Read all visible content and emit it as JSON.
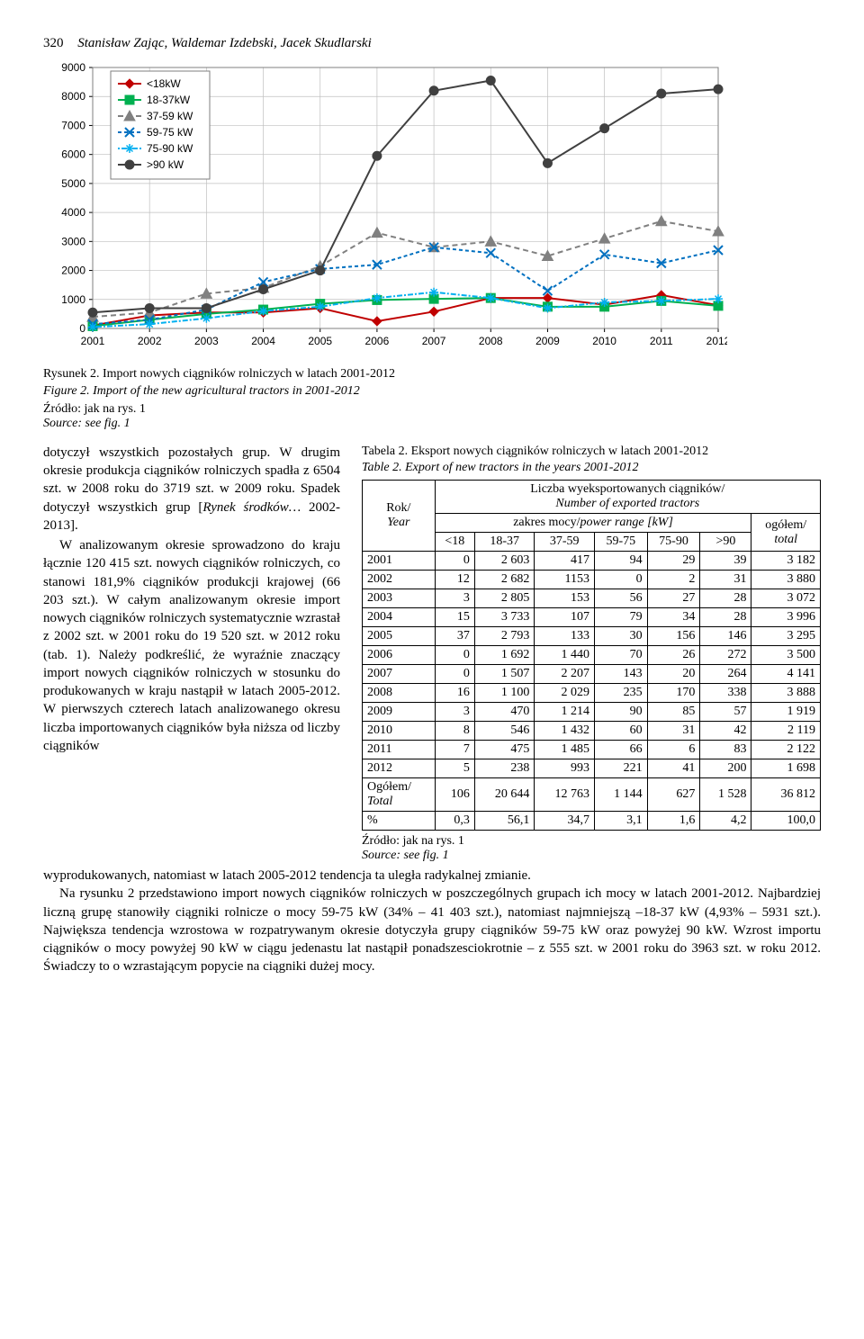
{
  "header": {
    "pageno": "320",
    "authors": "Stanisław Zając, Waldemar Izdebski, Jacek Skudlarski"
  },
  "chart": {
    "type": "line",
    "years": [
      2001,
      2002,
      2003,
      2004,
      2005,
      2006,
      2007,
      2008,
      2009,
      2010,
      2011,
      2012
    ],
    "ylim": [
      0,
      9000
    ],
    "ytick_step": 1000,
    "background_color": "#ffffff",
    "grid_color": "#bfbfbf",
    "axis_fontsize": 12,
    "legend_fontsize": 12,
    "plot_border": "#7f7f7f",
    "legend_border": "#7f7f7f",
    "series": [
      {
        "name": "<18kW",
        "color": "#c00000",
        "marker": "diamond",
        "dash": "0",
        "width": 2,
        "values": [
          100,
          450,
          550,
          550,
          700,
          250,
          580,
          1050,
          1050,
          820,
          1150,
          800
        ]
      },
      {
        "name": "18-37kW",
        "color": "#00b050",
        "marker": "square",
        "dash": "0",
        "width": 2,
        "values": [
          80,
          300,
          500,
          650,
          850,
          980,
          1020,
          1050,
          750,
          750,
          950,
          780
        ]
      },
      {
        "name": "37-59 kW",
        "color": "#808080",
        "marker": "triangle",
        "dash": "6,4",
        "width": 2,
        "values": [
          400,
          550,
          1200,
          1400,
          2150,
          3300,
          2800,
          3000,
          2500,
          3100,
          3700,
          3350
        ]
      },
      {
        "name": "59-75 kW",
        "color": "#0070c0",
        "marker": "x",
        "dash": "4,3",
        "width": 2,
        "values": [
          150,
          300,
          650,
          1600,
          2050,
          2200,
          2800,
          2600,
          1300,
          2550,
          2250,
          2700
        ]
      },
      {
        "name": "75-90 kW",
        "color": "#00b0f0",
        "marker": "asterisk",
        "dash": "2,2,6,2",
        "width": 2,
        "values": [
          50,
          150,
          350,
          600,
          750,
          1050,
          1250,
          1050,
          700,
          900,
          950,
          1020
        ]
      },
      {
        "name": ">90 kW",
        "color": "#404040",
        "marker": "circle",
        "dash": "0",
        "width": 2,
        "values": [
          550,
          700,
          700,
          1350,
          2000,
          5950,
          8200,
          8550,
          5700,
          6900,
          8100,
          8250
        ]
      }
    ]
  },
  "figcaption": {
    "line1": "Rysunek 2. Import nowych ciągników rolniczych w latach 2001-2012",
    "line2_pre": "Figure 2. Import of the new agricultural tractors in 2001-2012",
    "source1": "Źródło: jak na rys. 1",
    "source2": "Source: see fig. 1"
  },
  "left_text": {
    "p1a": "dotyczył wszystkich pozostałych grup. W drugim okresie produkcja ciągników rolniczych spadła z 6504 szt. w 2008 roku do 3719 szt. w 2009 roku. Spadek dotyczył wszystkich grup [",
    "p1b": "Rynek środków…",
    "p1c": " 2002-2013].",
    "p2": "W analizowanym okresie sprowadzono do kraju łącznie 120 415 szt. nowych ciągników rolniczych, co stanowi 181,9% ciągników produkcji krajowej (66 203 szt.). W całym analizowanym okresie import nowych ciągników rolniczych systematycznie wzrastał z 2002 szt. w 2001 roku do 19 520 szt. w 2012 roku (tab. 1). Należy podkreślić, że wyraźnie znaczący import nowych ciągników rolniczych w stosunku do produkowanych w kraju nastąpił w latach 2005-2012. W pierwszych czterech latach analizowanego okresu liczba importowanych ciągników była niższa od liczby ciągników"
  },
  "table": {
    "title1": "Tabela 2. Eksport nowych ciągników rolniczych w latach 2001-2012",
    "title2": "Table 2. Export of new tractors in the years 2001-2012",
    "colhead_year": "Rok/",
    "colhead_year2": "Year",
    "colhead_top": "Liczba wyeksportowanych ciągników/",
    "colhead_top2": "Number of exported tractors",
    "colhead_range": "zakres mocy/",
    "colhead_range2": "power range [kW]",
    "cols": [
      "<18",
      "18-37",
      "37-59",
      "59-75",
      "75-90",
      ">90"
    ],
    "col_total1": "ogółem/",
    "col_total2": "total",
    "rows": [
      {
        "y": "2001",
        "v": [
          0,
          "2 603",
          417,
          94,
          29,
          39,
          "3 182"
        ]
      },
      {
        "y": "2002",
        "v": [
          12,
          "2 682",
          "1153",
          0,
          2,
          31,
          "3 880"
        ]
      },
      {
        "y": "2003",
        "v": [
          3,
          "2 805",
          153,
          56,
          27,
          28,
          "3 072"
        ]
      },
      {
        "y": "2004",
        "v": [
          15,
          "3 733",
          107,
          79,
          34,
          28,
          "3 996"
        ]
      },
      {
        "y": "2005",
        "v": [
          37,
          "2 793",
          133,
          30,
          156,
          146,
          "3 295"
        ]
      },
      {
        "y": "2006",
        "v": [
          0,
          "1 692",
          "1 440",
          70,
          26,
          272,
          "3 500"
        ]
      },
      {
        "y": "2007",
        "v": [
          0,
          "1 507",
          "2 207",
          143,
          20,
          264,
          "4 141"
        ]
      },
      {
        "y": "2008",
        "v": [
          16,
          "1 100",
          "2 029",
          235,
          170,
          338,
          "3 888"
        ]
      },
      {
        "y": "2009",
        "v": [
          3,
          470,
          "1 214",
          90,
          85,
          57,
          "1 919"
        ]
      },
      {
        "y": "2010",
        "v": [
          8,
          546,
          "1 432",
          60,
          31,
          42,
          "2 119"
        ]
      },
      {
        "y": "2011",
        "v": [
          7,
          475,
          "1 485",
          66,
          6,
          83,
          "2 122"
        ]
      },
      {
        "y": "2012",
        "v": [
          5,
          238,
          993,
          221,
          41,
          200,
          "1 698"
        ]
      }
    ],
    "total_label1": "Ogółem/",
    "total_label2": "Total",
    "total_row": [
      106,
      "20 644",
      "12 763",
      "1 144",
      627,
      "1 528",
      "36 812"
    ],
    "pct_label": "%",
    "pct_row": [
      "0,3",
      "56,1",
      "34,7",
      "3,1",
      "1,6",
      "4,2",
      "100,0"
    ],
    "src1": "Źródło: jak na rys. 1",
    "src2": "Source: see fig. 1"
  },
  "bottom_text": {
    "p1": "wyprodukowanych, natomiast w latach 2005-2012 tendencja ta uległa radykalnej zmianie.",
    "p2": "Na rysunku 2 przedstawiono import nowych ciągników rolniczych w poszczególnych grupach ich mocy w latach 2001-2012. Najbardziej liczną grupę stanowiły ciągniki rolnicze o mocy 59-75 kW (34% – 41 403 szt.), natomiast najmniejszą –18-37 kW (4,93% – 5931 szt.). Największa tendencja wzrostowa w rozpatrywanym okresie dotyczyła grupy ciągników 59-75 kW oraz powyżej 90 kW. Wzrost importu ciągników o mocy powyżej 90 kW w ciągu jedenastu lat nastąpił ponadszesciokrotnie – z 555 szt. w 2001 roku do 3963 szt. w roku 2012. Świadczy to o wzrastającym popycie na ciągniki dużej mocy."
  }
}
